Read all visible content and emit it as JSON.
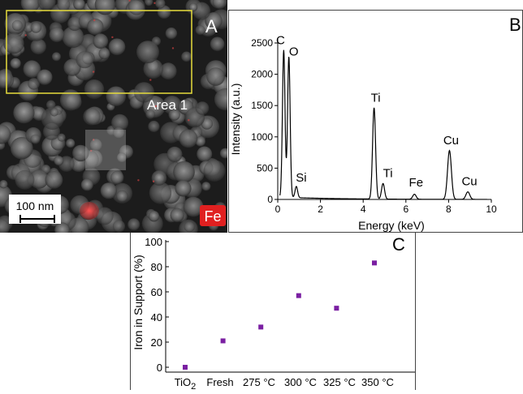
{
  "panel_a": {
    "label": "A",
    "area_label": "Area 1",
    "scale_bar": "100 nm",
    "element_tag": "Fe",
    "colors": {
      "area_box": "#e6dc3c",
      "fe_signal": "#e03030"
    }
  },
  "panel_b": {
    "label": "B"
  },
  "panel_c": {
    "label": "C"
  },
  "chart_data": [
    {
      "type": "line",
      "xlabel": "Energy (keV)",
      "ylabel": "Intensity (a.u.)",
      "xlim": [
        0,
        10
      ],
      "ylim": [
        0,
        2500
      ],
      "x_ticks": [
        0,
        2,
        4,
        6,
        8,
        10
      ],
      "y_ticks": [
        0,
        500,
        1000,
        1500,
        2000,
        2500
      ],
      "peaks": [
        {
          "label": "C",
          "x": 0.28,
          "y": 2350
        },
        {
          "label": "O",
          "x": 0.52,
          "y": 2250
        },
        {
          "label": "Si",
          "x": 0.87,
          "y": 180
        },
        {
          "label": "Ti",
          "x": 4.51,
          "y": 1460
        },
        {
          "label": "Ti",
          "x": 4.93,
          "y": 250
        },
        {
          "label": "Fe",
          "x": 6.4,
          "y": 80
        },
        {
          "label": "Cu",
          "x": 8.04,
          "y": 780
        },
        {
          "label": "Cu",
          "x": 8.9,
          "y": 120
        }
      ],
      "line_color": "#000000"
    },
    {
      "type": "scatter",
      "xlabel": "",
      "ylabel": "Iron in Support (%)",
      "ylim": [
        0,
        100
      ],
      "y_ticks": [
        0,
        20,
        40,
        60,
        80,
        100
      ],
      "categories": [
        "TiO2",
        "Fresh",
        "275 °C",
        "300 °C",
        "325 °C",
        "350 °C"
      ],
      "category_labels": [
        {
          "main": "TiO",
          "sub": "2"
        },
        {
          "main": "Fresh",
          "sub": ""
        },
        {
          "main": "275 °C",
          "sub": ""
        },
        {
          "main": "300 °C",
          "sub": ""
        },
        {
          "main": "325 °C",
          "sub": ""
        },
        {
          "main": "350 °C",
          "sub": ""
        }
      ],
      "values": [
        0,
        21,
        32,
        57,
        47,
        83
      ],
      "marker_color": "#7a1fa2"
    }
  ]
}
